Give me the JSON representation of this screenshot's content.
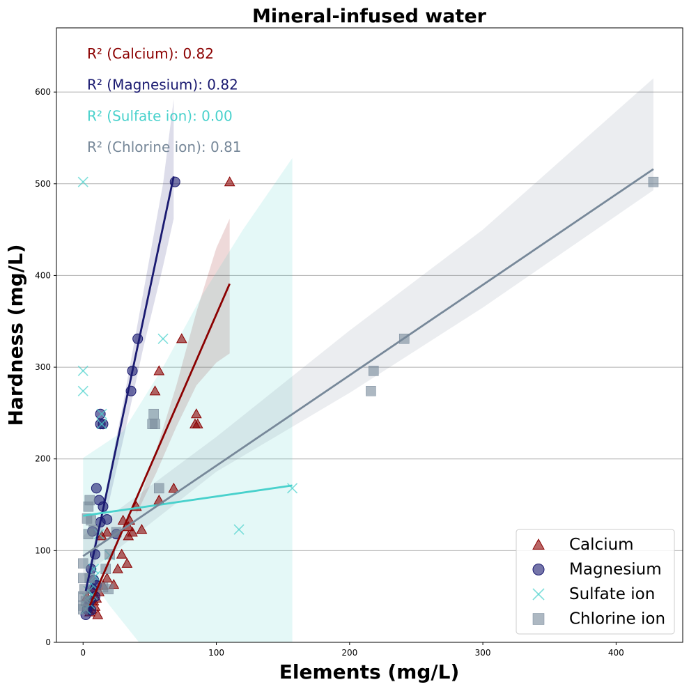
{
  "chart_data": {
    "type": "scatter",
    "title": "Mineral-infused water",
    "xlabel": "Elements (mg/L)",
    "ylabel": "Hardness (mg/L)",
    "xlim": [
      -20,
      450
    ],
    "ylim": [
      0,
      670
    ],
    "x_ticks": [
      0,
      100,
      200,
      300,
      400
    ],
    "y_ticks": [
      0,
      100,
      200,
      300,
      400,
      500,
      600
    ],
    "grid": "horizontal",
    "legend_position": "lower-right",
    "r2_annotations": [
      {
        "label": "R² (Calcium): 0.82",
        "color": "#8b0000"
      },
      {
        "label": "R² (Magnesium): 0.82",
        "color": "#191970"
      },
      {
        "label": "R² (Sulfate ion): 0.00",
        "color": "#48d1cc"
      },
      {
        "label": "R² (Chlorine ion): 0.81",
        "color": "#778899"
      }
    ],
    "series": [
      {
        "name": "Calcium",
        "marker": "triangle",
        "color": "#8b0000",
        "points": [
          [
            110,
            502
          ],
          [
            74,
            331
          ],
          [
            57,
            296
          ],
          [
            54,
            274
          ],
          [
            85,
            249
          ],
          [
            84,
            238
          ],
          [
            86,
            238
          ],
          [
            68,
            168
          ],
          [
            57,
            155
          ],
          [
            40,
            148
          ],
          [
            35,
            133
          ],
          [
            30,
            133
          ],
          [
            34,
            126
          ],
          [
            44,
            123
          ],
          [
            37,
            120
          ],
          [
            34,
            116
          ],
          [
            18,
            120
          ],
          [
            14,
            116
          ],
          [
            29,
            96
          ],
          [
            33,
            86
          ],
          [
            26,
            80
          ],
          [
            23,
            63
          ],
          [
            18,
            70
          ],
          [
            15,
            62
          ],
          [
            12,
            55
          ],
          [
            10,
            48
          ],
          [
            8,
            45
          ],
          [
            9,
            39
          ],
          [
            11,
            30
          ],
          [
            6,
            36
          ],
          [
            4,
            42
          ],
          [
            3,
            50
          ],
          [
            7,
            58
          ],
          [
            5,
            33
          ]
        ],
        "fit": {
          "x": [
            5,
            110
          ],
          "y": [
            40,
            391
          ]
        },
        "ci_upper": [
          [
            40,
            145
          ],
          [
            55,
            210
          ],
          [
            70,
            280
          ],
          [
            85,
            360
          ],
          [
            100,
            430
          ],
          [
            110,
            462
          ]
        ],
        "ci_lower": [
          [
            40,
            140
          ],
          [
            55,
            185
          ],
          [
            70,
            235
          ],
          [
            85,
            280
          ],
          [
            100,
            305
          ],
          [
            110,
            315
          ]
        ]
      },
      {
        "name": "Magnesium",
        "marker": "circle",
        "color": "#191970",
        "points": [
          [
            69,
            502
          ],
          [
            41,
            331
          ],
          [
            37,
            296
          ],
          [
            36,
            274
          ],
          [
            13,
            249
          ],
          [
            13,
            238
          ],
          [
            15,
            238
          ],
          [
            10,
            168
          ],
          [
            12,
            155
          ],
          [
            15,
            148
          ],
          [
            18,
            134
          ],
          [
            13,
            131
          ],
          [
            7,
            121
          ],
          [
            25,
            118
          ],
          [
            9,
            96
          ],
          [
            6,
            80
          ],
          [
            8,
            68
          ],
          [
            7,
            58
          ],
          [
            9,
            50
          ],
          [
            5,
            45
          ],
          [
            4,
            40
          ],
          [
            3,
            36
          ],
          [
            2,
            30
          ],
          [
            6,
            35
          ],
          [
            10,
            62
          ]
        ],
        "fit": {
          "x": [
            2,
            68
          ],
          "y": [
            56,
            508
          ]
        },
        "ci_upper": [
          [
            2,
            68
          ],
          [
            15,
            150
          ],
          [
            30,
            260
          ],
          [
            45,
            380
          ],
          [
            60,
            500
          ],
          [
            68,
            592
          ]
        ],
        "ci_lower": [
          [
            2,
            44
          ],
          [
            15,
            125
          ],
          [
            30,
            220
          ],
          [
            45,
            320
          ],
          [
            60,
            410
          ],
          [
            68,
            462
          ]
        ]
      },
      {
        "name": "Sulfate ion",
        "marker": "x",
        "color": "#48d1cc",
        "points": [
          [
            0,
            502
          ],
          [
            60,
            331
          ],
          [
            0,
            296
          ],
          [
            0,
            274
          ],
          [
            14,
            249
          ],
          [
            14,
            238
          ],
          [
            157,
            168
          ],
          [
            117,
            123
          ],
          [
            20,
            95
          ],
          [
            12,
            118
          ],
          [
            8,
            80
          ],
          [
            6,
            64
          ],
          [
            4,
            56
          ],
          [
            3,
            48
          ],
          [
            5,
            42
          ],
          [
            2,
            36
          ],
          [
            7,
            52
          ],
          [
            9,
            72
          ]
        ],
        "fit": {
          "x": [
            0,
            157
          ],
          "y": [
            138,
            171
          ]
        },
        "ci_upper": [
          [
            0,
            201
          ],
          [
            30,
            230
          ],
          [
            60,
            300
          ],
          [
            90,
            380
          ],
          [
            120,
            450
          ],
          [
            157,
            528
          ]
        ],
        "ci_lower": [
          [
            0,
            82
          ],
          [
            20,
            40
          ],
          [
            42,
            0
          ],
          [
            157,
            0
          ]
        ]
      },
      {
        "name": "Chlorine ion",
        "marker": "square",
        "color": "#778899",
        "points": [
          [
            428,
            502
          ],
          [
            241,
            331
          ],
          [
            218,
            296
          ],
          [
            216,
            274
          ],
          [
            53,
            249
          ],
          [
            52,
            238
          ],
          [
            54,
            238
          ],
          [
            57,
            168
          ],
          [
            5,
            155
          ],
          [
            4,
            148
          ],
          [
            6,
            133
          ],
          [
            3,
            135
          ],
          [
            8,
            122
          ],
          [
            4,
            118
          ],
          [
            20,
            96
          ],
          [
            17,
            80
          ],
          [
            0,
            86
          ],
          [
            5,
            70
          ],
          [
            0,
            70
          ],
          [
            1,
            58
          ],
          [
            0,
            50
          ],
          [
            2,
            45
          ],
          [
            0,
            40
          ],
          [
            0,
            36
          ],
          [
            19,
            58
          ],
          [
            15,
            60
          ],
          [
            25,
            120
          ]
        ],
        "fit": {
          "x": [
            0,
            428
          ],
          "y": [
            94,
            516
          ]
        },
        "ci_upper": [
          [
            0,
            116
          ],
          [
            100,
            224
          ],
          [
            200,
            340
          ],
          [
            300,
            450
          ],
          [
            428,
            615
          ]
        ],
        "ci_lower": [
          [
            0,
            72
          ],
          [
            100,
            186
          ],
          [
            200,
            272
          ],
          [
            300,
            365
          ],
          [
            428,
            493
          ]
        ]
      }
    ]
  }
}
